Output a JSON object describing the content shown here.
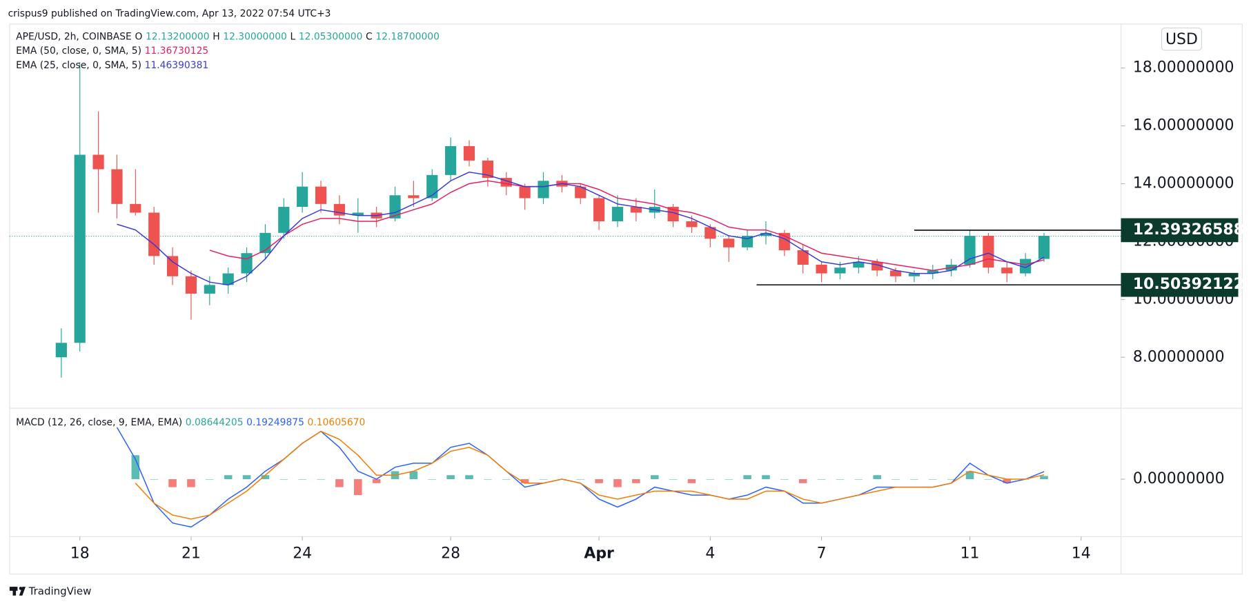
{
  "header": {
    "byline": "crispus9 published on TradingView.com, Apr 13, 2022 07:54 UTC+3"
  },
  "footer": {
    "brand": "TradingView"
  },
  "chart_data": {
    "type": "candlestick",
    "symbol": "APE/USD, 2h, COINBASE",
    "currency": "USD",
    "ohlc": {
      "labels": [
        "O",
        "H",
        "L",
        "C"
      ],
      "values": [
        12.132,
        12.3,
        12.053,
        12.187
      ],
      "value_labels": [
        "12.13200000",
        "12.30000000",
        "12.05300000",
        "12.18700000"
      ]
    },
    "up_color": "#26a69a",
    "down_color": "#ef5350",
    "candles": {
      "open": [
        8.0,
        8.5,
        15.0,
        14.5,
        13.3,
        13.0,
        11.5,
        10.8,
        10.2,
        10.5,
        10.9,
        11.6,
        12.3,
        13.2,
        13.9,
        13.3,
        12.9,
        13.0,
        12.8,
        13.6,
        13.5,
        14.3,
        15.3,
        14.8,
        14.2,
        13.9,
        13.5,
        14.1,
        13.9,
        13.5,
        12.7,
        13.2,
        13.0,
        13.2,
        12.7,
        12.5,
        12.1,
        11.8,
        12.2,
        12.3,
        11.7,
        11.2,
        10.9,
        11.1,
        11.3,
        11.0,
        10.8,
        10.9,
        11.0,
        11.2,
        12.2,
        11.1,
        10.9,
        11.4
      ],
      "high": [
        9.0,
        18.2,
        16.5,
        15.0,
        14.5,
        13.2,
        11.8,
        11.0,
        10.8,
        11.1,
        11.8,
        12.6,
        13.5,
        14.4,
        14.1,
        13.6,
        13.5,
        13.2,
        13.9,
        14.1,
        14.5,
        15.6,
        15.5,
        14.9,
        14.4,
        14.0,
        14.4,
        14.3,
        14.0,
        13.6,
        13.6,
        13.5,
        13.8,
        13.3,
        12.9,
        12.6,
        12.2,
        12.4,
        12.7,
        12.4,
        11.9,
        11.3,
        11.3,
        11.5,
        11.4,
        11.1,
        11.0,
        11.2,
        11.4,
        12.4,
        12.3,
        11.3,
        11.6,
        12.3
      ],
      "low": [
        7.3,
        8.2,
        13.0,
        12.8,
        12.9,
        11.2,
        10.5,
        9.3,
        9.8,
        10.2,
        10.6,
        11.4,
        12.1,
        13.0,
        13.0,
        12.6,
        12.3,
        12.5,
        12.7,
        13.2,
        13.4,
        14.1,
        14.6,
        13.9,
        13.6,
        13.1,
        13.3,
        13.7,
        13.3,
        12.4,
        12.5,
        12.7,
        12.8,
        12.5,
        12.3,
        11.8,
        11.3,
        11.7,
        11.9,
        11.5,
        10.9,
        10.6,
        10.7,
        10.9,
        10.8,
        10.6,
        10.6,
        10.7,
        10.8,
        11.1,
        10.9,
        10.6,
        10.8,
        11.3
      ],
      "close": [
        8.5,
        15.0,
        14.5,
        13.3,
        13.0,
        11.5,
        10.8,
        10.2,
        10.5,
        10.9,
        11.6,
        12.3,
        13.2,
        13.9,
        13.3,
        12.9,
        13.0,
        12.8,
        13.6,
        13.5,
        14.3,
        15.3,
        14.8,
        14.2,
        13.9,
        13.5,
        14.1,
        13.9,
        13.5,
        12.7,
        13.2,
        13.0,
        13.2,
        12.7,
        12.5,
        12.1,
        11.8,
        12.2,
        12.3,
        11.7,
        11.2,
        10.9,
        11.1,
        11.3,
        11.0,
        10.8,
        10.9,
        11.0,
        11.2,
        12.2,
        11.1,
        10.9,
        11.4,
        12.2
      ]
    },
    "ema": [
      {
        "name": "EMA (50, close, 0, SMA, 5)",
        "color": "#e91e63",
        "value": 11.36730125,
        "value_label": "11.36730125",
        "values": [
          null,
          null,
          null,
          null,
          null,
          null,
          null,
          null,
          11.7,
          11.5,
          11.4,
          11.7,
          12.2,
          12.6,
          12.8,
          12.8,
          12.7,
          12.7,
          12.9,
          13.1,
          13.3,
          13.7,
          14.0,
          14.1,
          14.0,
          13.9,
          13.9,
          14.0,
          14.0,
          13.8,
          13.5,
          13.4,
          13.3,
          13.1,
          13.0,
          12.8,
          12.5,
          12.4,
          12.4,
          12.2,
          11.9,
          11.6,
          11.5,
          11.4,
          11.3,
          11.2,
          11.1,
          11.0,
          11.1,
          11.2,
          11.4,
          11.3,
          11.2,
          11.37
        ]
      },
      {
        "name": "EMA (25, close, 0, SMA, 5)",
        "color": "#3a3adb",
        "value": 11.46390381,
        "value_label": "11.46390381",
        "values": [
          null,
          null,
          null,
          12.6,
          12.4,
          11.9,
          11.3,
          10.9,
          10.6,
          10.5,
          10.8,
          11.4,
          12.2,
          12.8,
          13.1,
          13.0,
          12.9,
          12.9,
          13.0,
          13.3,
          13.6,
          14.1,
          14.4,
          14.3,
          14.1,
          13.9,
          13.9,
          14.0,
          13.9,
          13.6,
          13.3,
          13.2,
          13.1,
          13.0,
          12.8,
          12.5,
          12.2,
          12.1,
          12.3,
          12.1,
          11.7,
          11.3,
          11.2,
          11.3,
          11.2,
          11.0,
          10.9,
          10.9,
          11.0,
          11.4,
          11.6,
          11.3,
          11.1,
          11.46
        ]
      }
    ],
    "ylim": [
      6.24,
      19.52
    ],
    "yticks": [
      {
        "value": 8,
        "label": "8.00000000"
      },
      {
        "value": 10,
        "label": "10.00000000"
      },
      {
        "value": 12,
        "label": "12.00000000"
      },
      {
        "value": 14,
        "label": "14.00000000"
      },
      {
        "value": 16,
        "label": "16.00000000"
      },
      {
        "value": 18,
        "label": "18.00000000"
      }
    ],
    "xlim": [
      -2.79,
      57.15
    ],
    "xticks": [
      {
        "value": 1,
        "label": "18"
      },
      {
        "value": 7,
        "label": "21"
      },
      {
        "value": 13,
        "label": "24"
      },
      {
        "value": 21,
        "label": "28"
      },
      {
        "value": 29,
        "label": "Apr"
      },
      {
        "value": 35,
        "label": "4"
      },
      {
        "value": 41,
        "label": "7"
      },
      {
        "value": 49,
        "label": "11"
      },
      {
        "value": 55,
        "label": "14"
      }
    ],
    "levels": [
      {
        "value": 12.39326588,
        "label": "12.39326588",
        "start": 46
      },
      {
        "value": 10.50392122,
        "label": "10.50392122",
        "start": 37.5
      }
    ],
    "level_color": "#0b3b2d",
    "macd": {
      "name": "MACD (12, 26, close, 9, EMA, EMA)",
      "ylim": [
        -1.44,
        1.78
      ],
      "yticks": [
        {
          "value": 0,
          "label": "0.00000000"
        }
      ],
      "histogram": {
        "value": 0.08644205,
        "value_label": "0.08644205",
        "color": "#26a69a",
        "neg_color": "#ef5350",
        "values": [
          null,
          null,
          null,
          null,
          0.6,
          0.0,
          -0.2,
          -0.2,
          0.0,
          0.1,
          0.1,
          0.1,
          0.0,
          0.0,
          0.0,
          -0.2,
          -0.4,
          -0.1,
          0.2,
          0.2,
          0.0,
          0.1,
          0.1,
          0.0,
          0.0,
          -0.1,
          0.0,
          0.0,
          0.0,
          -0.1,
          -0.2,
          -0.1,
          0.1,
          0.0,
          -0.1,
          0.0,
          0.0,
          0.1,
          0.1,
          0.0,
          -0.1,
          0.0,
          0.0,
          0.0,
          0.1,
          0.0,
          0.0,
          0.0,
          0.0,
          0.2,
          0.0,
          -0.1,
          0.0,
          0.08
        ]
      },
      "lines": [
        {
          "color": "#2962ff",
          "value": 0.19249875,
          "value_label": "0.19249875",
          "values": [
            null,
            null,
            null,
            1.3,
            0.5,
            -0.6,
            -1.1,
            -1.2,
            -0.9,
            -0.5,
            -0.2,
            0.2,
            0.5,
            0.9,
            1.2,
            0.8,
            0.2,
            0.0,
            0.3,
            0.4,
            0.4,
            0.8,
            0.9,
            0.6,
            0.2,
            -0.2,
            -0.1,
            0.0,
            -0.1,
            -0.5,
            -0.7,
            -0.5,
            -0.2,
            -0.3,
            -0.4,
            -0.4,
            -0.5,
            -0.4,
            -0.2,
            -0.3,
            -0.6,
            -0.6,
            -0.5,
            -0.4,
            -0.2,
            -0.2,
            -0.2,
            -0.2,
            -0.1,
            0.4,
            0.1,
            -0.1,
            0.0,
            0.19
          ]
        },
        {
          "color": "#f57c00",
          "value": 0.1060567,
          "value_label": "0.10605670",
          "values": [
            null,
            null,
            null,
            null,
            -0.1,
            -0.6,
            -0.9,
            -1.0,
            -0.9,
            -0.6,
            -0.3,
            0.1,
            0.5,
            0.9,
            1.2,
            1.0,
            0.6,
            0.1,
            0.1,
            0.2,
            0.4,
            0.7,
            0.8,
            0.6,
            0.2,
            -0.1,
            -0.1,
            0.0,
            -0.1,
            -0.4,
            -0.5,
            -0.4,
            -0.3,
            -0.3,
            -0.3,
            -0.4,
            -0.5,
            -0.5,
            -0.3,
            -0.3,
            -0.5,
            -0.6,
            -0.5,
            -0.4,
            -0.3,
            -0.2,
            -0.2,
            -0.2,
            -0.1,
            0.2,
            0.1,
            0.0,
            0.0,
            0.11
          ]
        }
      ]
    }
  }
}
